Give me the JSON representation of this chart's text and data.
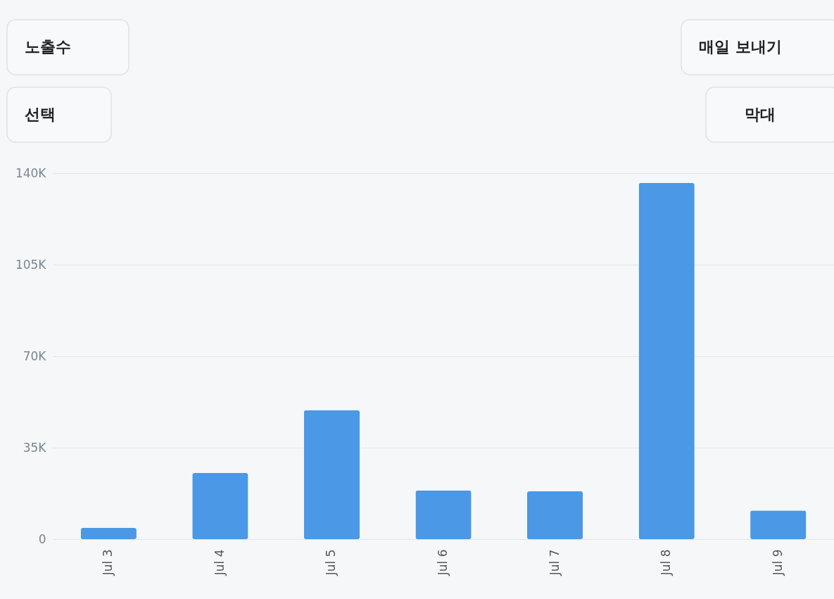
{
  "chart_data": {
    "type": "bar",
    "categories": [
      "Jul 3",
      "Jul 4",
      "Jul 5",
      "Jul 6",
      "Jul 7",
      "Jul 8",
      "Jul 9"
    ],
    "values": [
      4300,
      25300,
      49300,
      18600,
      18300,
      136200,
      11000
    ],
    "color": "#4a98e6",
    "ylim": [
      0,
      140000
    ],
    "yticks": [
      {
        "value": 0,
        "label": "0"
      },
      {
        "value": 35000,
        "label": "35K"
      },
      {
        "value": 70000,
        "label": "70K"
      },
      {
        "value": 105000,
        "label": "105K"
      },
      {
        "value": 140000,
        "label": "140K"
      }
    ],
    "grid": "y",
    "annotations": [
      "노출수",
      "선택",
      "매일 보내기",
      "막대"
    ]
  }
}
